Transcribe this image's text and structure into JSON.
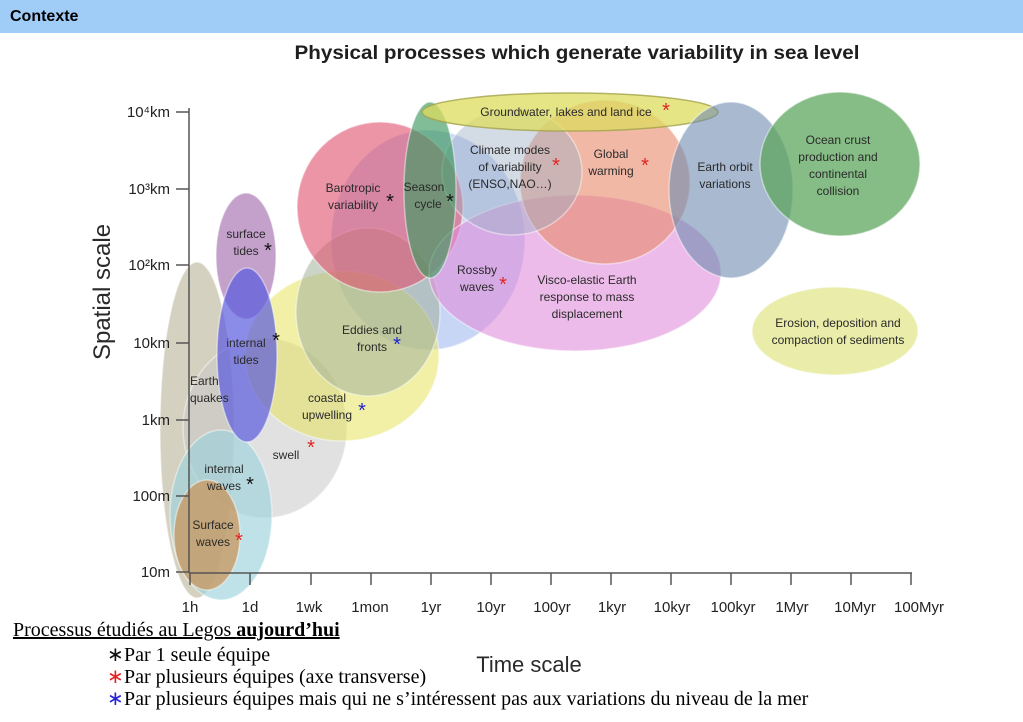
{
  "header": {
    "title": "Contexte"
  },
  "diagram": {
    "title": "Physical processes which generate variability in sea level",
    "y_axis": {
      "label": "Spatial scale",
      "ticks": [
        "10⁴km",
        "10³km",
        "10²km",
        "10km",
        "1km",
        "100m",
        "10m"
      ]
    },
    "x_axis": {
      "label": "Time scale",
      "ticks": [
        "1h",
        "1d",
        "1wk",
        "1mon",
        "1yr",
        "10yr",
        "100yr",
        "1kyr",
        "10kyr",
        "100kyr",
        "1Myr",
        "10Myr",
        "100Myr"
      ]
    },
    "processes": [
      {
        "lines": [
          "Earth",
          "quakes"
        ],
        "color": "#b3ab8c"
      },
      {
        "lines": [
          "swell"
        ],
        "marker": "*",
        "marker_color": "#e02424",
        "color": "#c9c9c9"
      },
      {
        "lines": [
          "internal",
          "waves"
        ],
        "marker": "*",
        "marker_color": "#111111",
        "color": "#9cd2dc"
      },
      {
        "lines": [
          "Surface",
          "waves"
        ],
        "marker": "*",
        "marker_color": "#e02424",
        "color": "#c8955c"
      },
      {
        "lines": [
          "Rossby",
          "waves"
        ],
        "marker": "*",
        "marker_color": "#e02424",
        "color": "#9bb5ee"
      },
      {
        "lines": [
          "coastal",
          "upwelling"
        ],
        "marker": "*",
        "marker_color": "#2424d0",
        "color": "#e6e35c"
      },
      {
        "lines": [
          "Eddies and",
          "fronts"
        ],
        "marker": "*",
        "marker_color": "#2424d0",
        "color": "#a3b19a"
      },
      {
        "lines": [
          "Barotropic",
          "variability"
        ],
        "marker": "*",
        "marker_color": "#111111",
        "color": "#df4e6c"
      },
      {
        "lines": [
          "surface",
          "tides"
        ],
        "marker": "*",
        "marker_color": "#111111",
        "color": "#a36fae"
      },
      {
        "lines": [
          "internal",
          "tides"
        ],
        "marker": "*",
        "marker_color": "#111111",
        "color": "#5a5ade"
      },
      {
        "lines": [
          "Visco-elastic Earth",
          "response to mass",
          "displacement"
        ],
        "color": "#df8ddb"
      },
      {
        "lines": [
          "Global",
          "warming"
        ],
        "marker": "*",
        "marker_color": "#e02424",
        "color": "#e7886a"
      },
      {
        "lines": [
          "Climate modes",
          "of variability",
          "(ENSO,NAO…)"
        ],
        "marker": "*",
        "marker_color": "#e02424",
        "color": "#9eafc4"
      },
      {
        "lines": [
          "Season",
          "cycle"
        ],
        "marker": "*",
        "marker_color": "#111111",
        "color": "#3e9a60"
      },
      {
        "lines": [
          "Groundwater, lakes and land ice"
        ],
        "marker": "*",
        "marker_color": "#e02424",
        "color": "#dcdc5e"
      },
      {
        "lines": [
          "Earth orbit",
          "variations"
        ],
        "color": "#6e8bb0"
      },
      {
        "lines": [
          "Ocean crust",
          "production and",
          "continental",
          "collision"
        ],
        "color": "#5ea65e"
      },
      {
        "lines": [
          "Erosion, deposition and",
          "compaction of sediments"
        ],
        "color": "#e1e78c"
      }
    ]
  },
  "legend": {
    "heading": "Processus étudiés au Legos ",
    "heading_bold": "aujourd’hui",
    "items": [
      {
        "marker": "∗",
        "marker_color": "#111111",
        "text": "Par 1 seule équipe"
      },
      {
        "marker": "∗",
        "marker_color": "#e02424",
        "text": "Par plusieurs équipes (axe transverse)"
      },
      {
        "marker": "∗",
        "marker_color": "#2424d0",
        "text": "Par plusieurs équipes mais qui ne s’intéressent pas aux variations du niveau de la mer"
      }
    ]
  },
  "colors": {
    "header_bg": "#a0cdf8",
    "axis": "#555555"
  }
}
